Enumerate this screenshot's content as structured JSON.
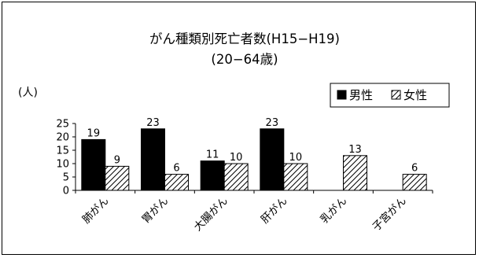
{
  "chart_data": {
    "type": "bar",
    "title": "がん種類別死亡者数(H15−H19)",
    "subtitle": "(20−64歳)",
    "ylabel": "(人)",
    "categories": [
      "肺がん",
      "胃がん",
      "大腸がん",
      "肝がん",
      "乳がん",
      "子宮がん"
    ],
    "series": [
      {
        "name": "男性",
        "values": [
          19,
          23,
          11,
          23,
          null,
          null
        ],
        "color": "#000000",
        "pattern": "solid"
      },
      {
        "name": "女性",
        "values": [
          9,
          6,
          10,
          10,
          13,
          6
        ],
        "color": "#ffffff",
        "pattern": "diagonal-hatch"
      }
    ],
    "yticks": [
      0,
      5,
      10,
      15,
      20,
      25
    ],
    "ylim": [
      0,
      25
    ],
    "grid": false,
    "legend_position": "top-right",
    "data_labels": true
  }
}
